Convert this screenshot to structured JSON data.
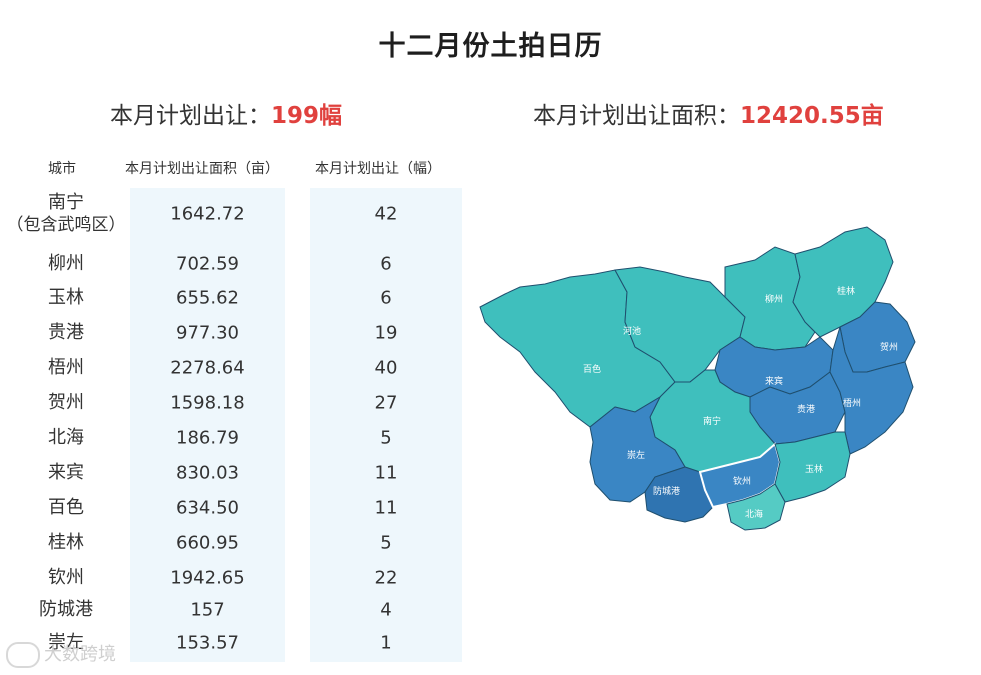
{
  "title": "十二月份土拍日历",
  "summary": {
    "plots_label": "本月计划出让：",
    "plots_value": "199幅",
    "area_label": "本月计划出让面积：",
    "area_value": "12420.55亩"
  },
  "table": {
    "headers": {
      "city": "城市",
      "area": "本月计划出让面积（亩）",
      "count": "本月计划出让（幅）"
    },
    "rows": [
      {
        "city": "南宁",
        "city_sub": "（包含武鸣区）",
        "area": "1642.72",
        "count": "42"
      },
      {
        "city": "柳州",
        "area": "702.59",
        "count": "6"
      },
      {
        "city": "玉林",
        "area": "655.62",
        "count": "6"
      },
      {
        "city": "贵港",
        "area": "977.30",
        "count": "19"
      },
      {
        "city": "梧州",
        "area": "2278.64",
        "count": "40"
      },
      {
        "city": "贺州",
        "area": "1598.18",
        "count": "27"
      },
      {
        "city": "北海",
        "area": "186.79",
        "count": "5"
      },
      {
        "city": "来宾",
        "area": "830.03",
        "count": "11"
      },
      {
        "city": "百色",
        "area": "634.50",
        "count": "11"
      },
      {
        "city": "桂林",
        "area": "660.95",
        "count": "5"
      },
      {
        "city": "钦州",
        "area": "1942.65",
        "count": "22"
      },
      {
        "city": "防城港",
        "area": "157",
        "count": "4"
      },
      {
        "city": "崇左",
        "area": "153.57",
        "count": "1"
      }
    ]
  },
  "map": {
    "labels": {
      "guilin": "桂林",
      "liuzhou": "柳州",
      "hechi": "河池",
      "baise": "百色",
      "hezhou": "贺州",
      "laibin": "来宾",
      "guigang": "贵港",
      "wuzhou": "梧州",
      "nanning": "南宁",
      "chongzuo": "崇左",
      "yulin": "玉林",
      "qinzhou": "钦州",
      "fangchenggang": "防城港",
      "beihai": "北海"
    },
    "colors": {
      "teal": "#3fbfbd",
      "teal_light": "#55cbc4",
      "blue": "#3a86c4",
      "blue_dark": "#2f74b1",
      "border": "#1f4f6e",
      "highlight_border": "#ffffff"
    }
  },
  "watermark": "大数跨境"
}
